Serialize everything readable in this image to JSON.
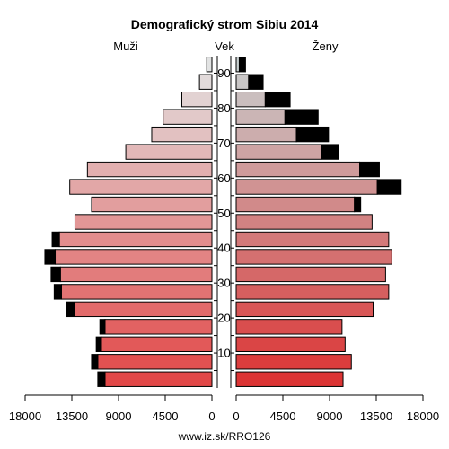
{
  "chart_data": {
    "type": "bar",
    "title": "Demografický strom Sibiu 2014",
    "left_label": "Muži",
    "center_label": "Vek",
    "right_label": "Ženy",
    "footer": "www.iz.sk/RRO126",
    "age_ticks": [
      "10",
      "20",
      "30",
      "40",
      "50",
      "60",
      "70",
      "80",
      "90"
    ],
    "x_ticks_left": [
      "18000",
      "13500",
      "9000",
      "4500",
      "0"
    ],
    "x_ticks_right": [
      "0",
      "4500",
      "9000",
      "13500",
      "18000"
    ],
    "xlim": [
      0,
      18000
    ],
    "age_groups": [
      "0-4",
      "5-9",
      "10-14",
      "15-19",
      "20-24",
      "25-29",
      "30-34",
      "35-39",
      "40-44",
      "45-49",
      "50-54",
      "55-59",
      "60-64",
      "65-69",
      "70-74",
      "75-79",
      "80-84",
      "85-89",
      "90+"
    ],
    "series": [
      {
        "name": "Muži",
        "values": [
          10300,
          11000,
          10650,
          10300,
          13200,
          14500,
          14600,
          15100,
          14700,
          13200,
          11600,
          13700,
          12000,
          8300,
          5800,
          4700,
          2900,
          1200,
          500
        ],
        "extra": [
          700,
          600,
          500,
          500,
          800,
          700,
          900,
          1000,
          700,
          0,
          0,
          0,
          0,
          0,
          0,
          0,
          0,
          0,
          0
        ]
      },
      {
        "name": "Ženy",
        "values": [
          10300,
          11100,
          10500,
          10200,
          13200,
          14700,
          14400,
          15000,
          14700,
          13100,
          11400,
          13600,
          11900,
          8200,
          5800,
          4700,
          2800,
          1200,
          300
        ],
        "extra": [
          0,
          0,
          0,
          0,
          0,
          0,
          0,
          0,
          0,
          0,
          600,
          2300,
          1900,
          1700,
          3100,
          3200,
          2400,
          1400,
          600
        ]
      }
    ],
    "colors": {
      "extra": "#000000",
      "outline": "#000000",
      "axis": "#000000"
    }
  }
}
